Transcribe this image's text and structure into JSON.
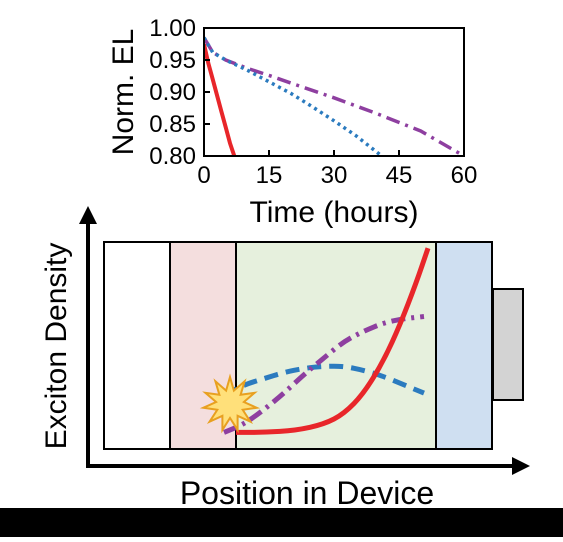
{
  "chart_data": [
    {
      "type": "line",
      "xlabel": "Time (hours)",
      "ylabel": "Norm. EL",
      "xlim": [
        0,
        60
      ],
      "ylim": [
        0.8,
        1.0
      ],
      "xticks": [
        "0",
        "15",
        "30",
        "45",
        "60"
      ],
      "yticks": [
        "0.80",
        "0.85",
        "0.90",
        "0.95",
        "1.00"
      ],
      "series": [
        {
          "color": "#e8262a",
          "style": "solid",
          "x": [
            0,
            1,
            2,
            3,
            4,
            5,
            6,
            7
          ],
          "y": [
            0.975,
            0.945,
            0.92,
            0.895,
            0.87,
            0.845,
            0.82,
            0.8
          ]
        },
        {
          "color": "#8e3fa0",
          "style": "dashdot",
          "x": [
            0,
            2,
            5,
            10,
            15,
            20,
            30,
            40,
            50,
            60
          ],
          "y": [
            0.985,
            0.962,
            0.95,
            0.937,
            0.926,
            0.914,
            0.891,
            0.866,
            0.839,
            0.8
          ]
        },
        {
          "color": "#2b7bbf",
          "style": "dotted",
          "x": [
            0,
            2,
            5,
            10,
            15,
            20,
            25,
            30,
            35,
            41
          ],
          "y": [
            0.985,
            0.962,
            0.95,
            0.934,
            0.916,
            0.898,
            0.877,
            0.855,
            0.832,
            0.8
          ]
        }
      ]
    },
    {
      "type": "line",
      "xlabel": "Position in Device",
      "ylabel": "Exciton Density",
      "xlim": [
        0,
        1
      ],
      "ylim": [
        0,
        1
      ],
      "regions": [
        {
          "x": [
            0.0,
            0.165
          ],
          "color": "#ffffff"
        },
        {
          "x": [
            0.165,
            0.33
          ],
          "color": "#f4dede"
        },
        {
          "x": [
            0.33,
            0.83
          ],
          "color": "#e6f0dd"
        },
        {
          "x": [
            0.83,
            0.97
          ],
          "color": "#cfdff1"
        }
      ],
      "electrode_color": "#d3d3d3",
      "series": [
        {
          "color": "#e8262a",
          "style": "solid",
          "x": [
            0.33,
            0.4,
            0.48,
            0.55,
            0.6,
            0.65,
            0.7,
            0.74,
            0.78,
            0.81
          ],
          "y": [
            0.08,
            0.08,
            0.09,
            0.12,
            0.17,
            0.27,
            0.43,
            0.6,
            0.8,
            0.97
          ]
        },
        {
          "color": "#8e3fa0",
          "style": "dashdot",
          "x": [
            0.3,
            0.35,
            0.4,
            0.45,
            0.5,
            0.55,
            0.6,
            0.65,
            0.7,
            0.75,
            0.8
          ],
          "y": [
            0.08,
            0.12,
            0.19,
            0.27,
            0.36,
            0.44,
            0.52,
            0.57,
            0.61,
            0.63,
            0.64
          ]
        },
        {
          "color": "#2b7bbf",
          "style": "dashed",
          "x": [
            0.3,
            0.35,
            0.4,
            0.45,
            0.5,
            0.55,
            0.6,
            0.65,
            0.7,
            0.75,
            0.8
          ],
          "y": [
            0.26,
            0.31,
            0.34,
            0.37,
            0.39,
            0.4,
            0.4,
            0.38,
            0.35,
            0.31,
            0.27
          ]
        }
      ]
    }
  ],
  "starburst": {
    "fill": "#ffe07a",
    "stroke": "#e8a020"
  }
}
